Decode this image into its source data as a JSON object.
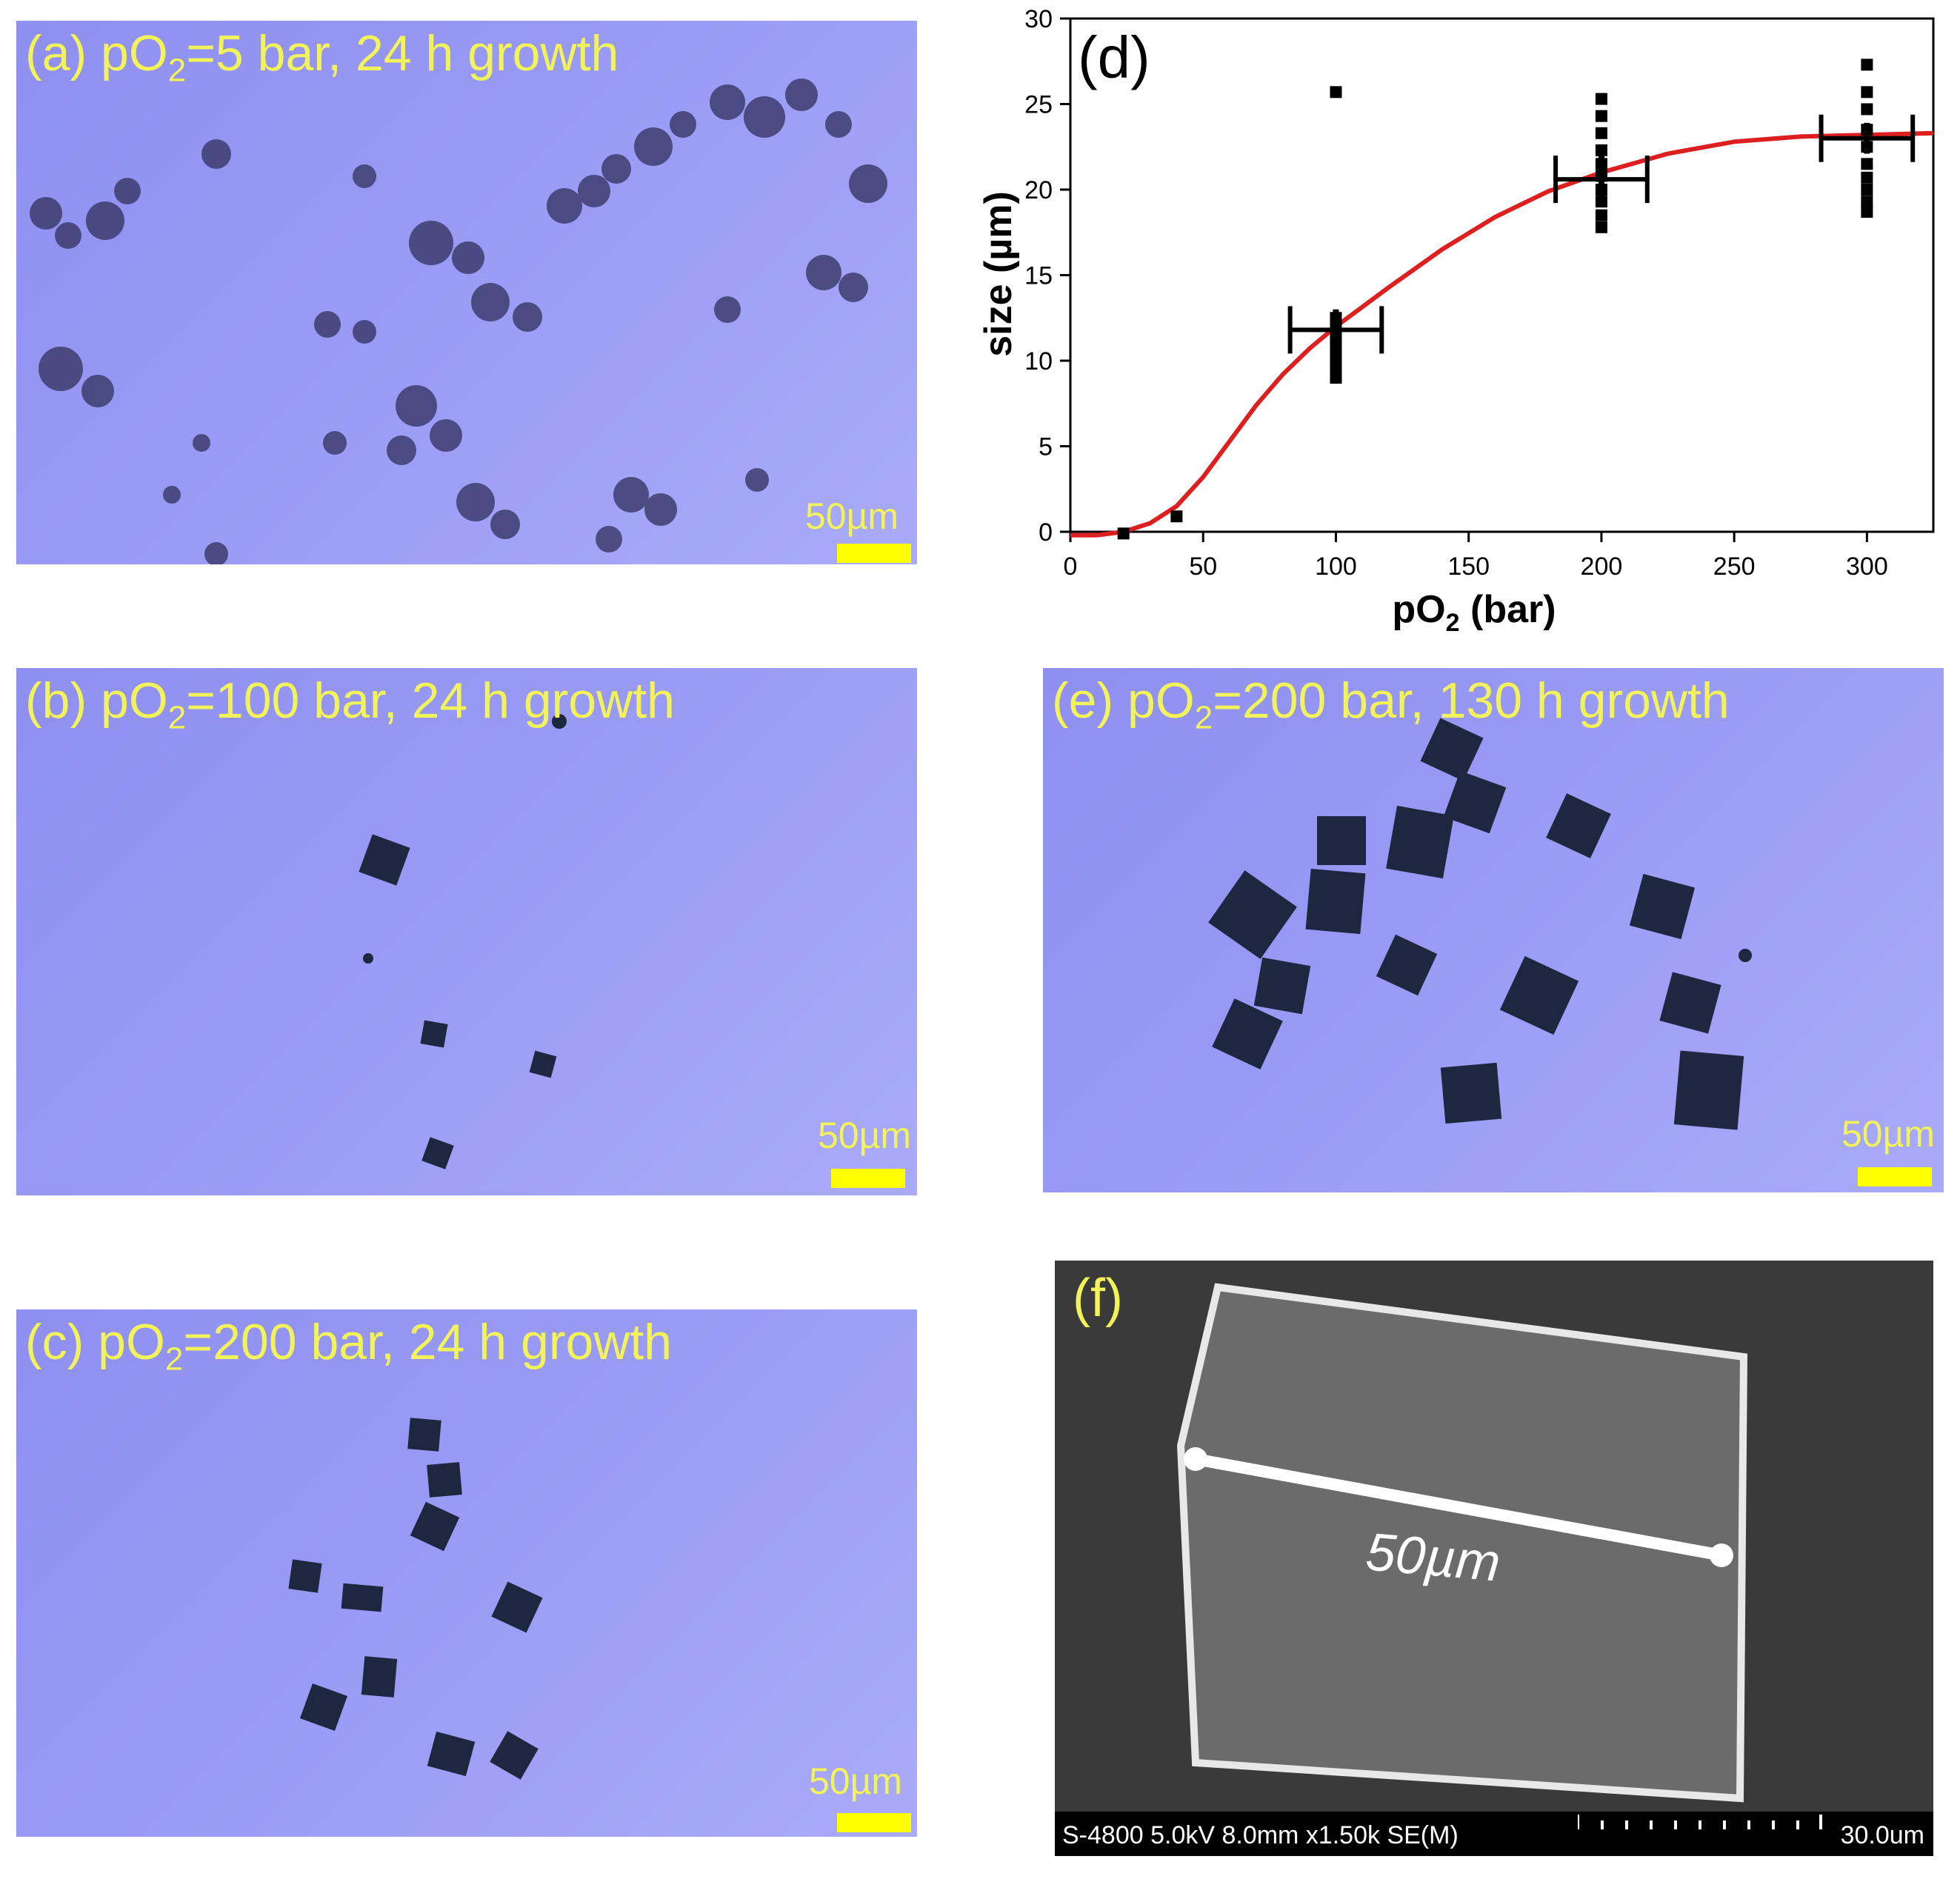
{
  "panels": {
    "a": {
      "prefix": "(a) pO",
      "sub": "2",
      "suffix": "=5 bar, 24 h growth",
      "scale": "50µm"
    },
    "b": {
      "prefix": "(b) pO",
      "sub": "2",
      "suffix": "=100 bar, 24 h growth",
      "scale": "50µm"
    },
    "c": {
      "prefix": "(c) pO",
      "sub": "2",
      "suffix": "=200 bar, 24 h growth",
      "scale": "50µm"
    },
    "e": {
      "prefix": "(e) pO",
      "sub": "2",
      "suffix": "=200 bar, 130 h growth",
      "scale": "50µm"
    },
    "f": {
      "label": "(f)",
      "measure": "50µm",
      "info": "S-4800 5.0kV 8.0mm x1.50k SE(M)",
      "scale": "30.0um"
    }
  },
  "chart_data": {
    "type": "scatter",
    "panel_label": "(d)",
    "xlabel_prefix": "pO",
    "xlabel_sub": "2",
    "xlabel_suffix": " (bar)",
    "ylabel": "size (µm)",
    "xlim": [
      0,
      325
    ],
    "ylim": [
      0,
      30
    ],
    "xticks": [
      0,
      50,
      100,
      150,
      200,
      250,
      300
    ],
    "yticks": [
      0,
      5,
      10,
      15,
      20,
      25,
      30
    ],
    "points": [
      [
        20,
        -0.1
      ],
      [
        40,
        0.9
      ],
      [
        100,
        25.7
      ],
      [
        100,
        12.5
      ],
      [
        100,
        12.0
      ],
      [
        100,
        11.5
      ],
      [
        100,
        11.0
      ],
      [
        100,
        10.5
      ],
      [
        100,
        10.0
      ],
      [
        100,
        9.5
      ],
      [
        100,
        9.0
      ],
      [
        200,
        25.3
      ],
      [
        200,
        24.3
      ],
      [
        200,
        23.3
      ],
      [
        200,
        22.3
      ],
      [
        200,
        21.5
      ],
      [
        200,
        20.8
      ],
      [
        200,
        20.0
      ],
      [
        200,
        19.3
      ],
      [
        200,
        18.5
      ],
      [
        200,
        17.8
      ],
      [
        300,
        27.3
      ],
      [
        300,
        25.7
      ],
      [
        300,
        24.7
      ],
      [
        300,
        23.5
      ],
      [
        300,
        22.5
      ],
      [
        300,
        21.5
      ],
      [
        300,
        20.7
      ],
      [
        300,
        20.0
      ],
      [
        300,
        19.3
      ],
      [
        300,
        18.7
      ]
    ],
    "means": [
      {
        "x": 100,
        "y": 11.8,
        "xerr": 15,
        "yerr": 1.2
      },
      {
        "x": 200,
        "y": 20.6,
        "xerr": 15,
        "yerr": 1.4
      },
      {
        "x": 300,
        "y": 23.0,
        "xerr": 15,
        "yerr": 0.9
      }
    ],
    "fit_color": "#dd1f1f",
    "fit": [
      [
        0,
        -0.2
      ],
      [
        10,
        -0.2
      ],
      [
        20,
        0.0
      ],
      [
        30,
        0.5
      ],
      [
        40,
        1.5
      ],
      [
        50,
        3.2
      ],
      [
        60,
        5.3
      ],
      [
        70,
        7.4
      ],
      [
        80,
        9.2
      ],
      [
        90,
        10.7
      ],
      [
        100,
        12.0
      ],
      [
        120,
        14.3
      ],
      [
        140,
        16.5
      ],
      [
        160,
        18.4
      ],
      [
        180,
        19.9
      ],
      [
        200,
        21.0
      ],
      [
        225,
        22.1
      ],
      [
        250,
        22.8
      ],
      [
        275,
        23.1
      ],
      [
        300,
        23.2
      ],
      [
        325,
        23.3
      ]
    ]
  }
}
